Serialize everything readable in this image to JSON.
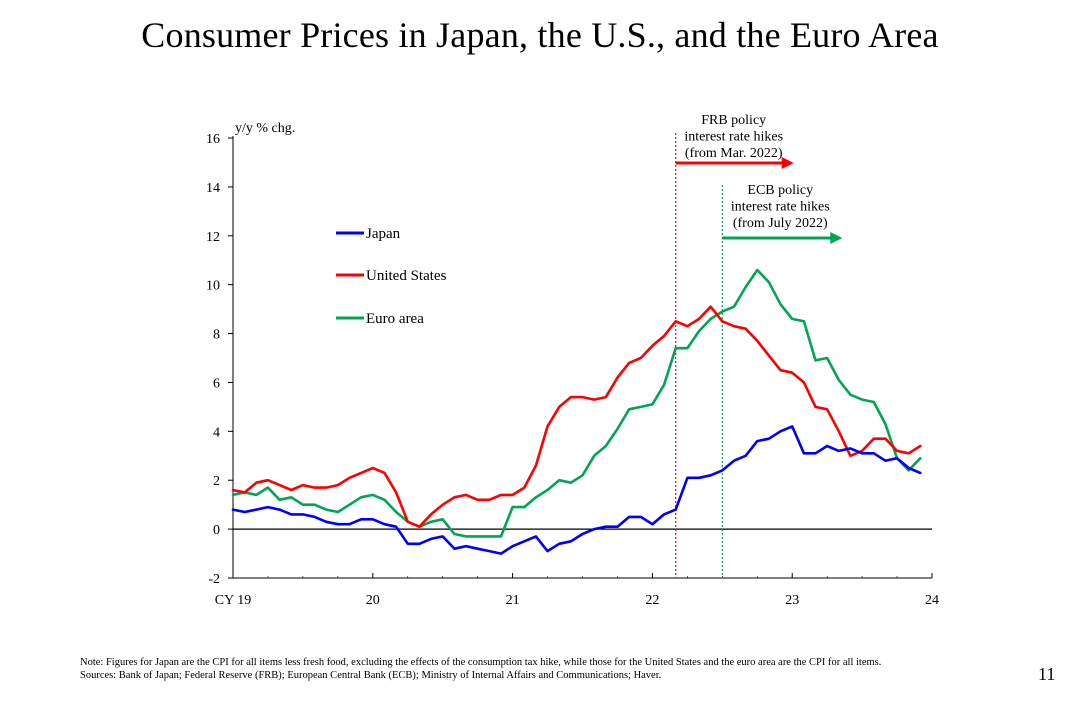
{
  "title": "Consumer Prices in Japan, the U.S., and the Euro Area",
  "page_number": "11",
  "note": "Note: Figures for Japan are the CPI for all items less fresh food, excluding the effects of the consumption tax hike, while those for the United States and the euro area are the CPI for all items.",
  "sources": "Sources: Bank of Japan; Federal Reserve (FRB); European Central Bank (ECB); Ministry of Internal Affairs and Communications; Haver.",
  "chart_data": {
    "type": "line",
    "title": "",
    "ylabel": "y/y % chg.",
    "xlabel": "",
    "ylim": [
      -2,
      16
    ],
    "yticks": [
      -2,
      0,
      2,
      4,
      6,
      8,
      10,
      12,
      14,
      16
    ],
    "xlim": [
      "2019-01",
      "2024-01"
    ],
    "xtick_labels": [
      "CY 19",
      "20",
      "21",
      "22",
      "23",
      "24"
    ],
    "xtick_dates": [
      "2019-01",
      "2020-01",
      "2021-01",
      "2022-01",
      "2023-01",
      "2024-01"
    ],
    "grid": false,
    "zero_line": true,
    "legend_position": "upper-left",
    "annotations": [
      {
        "text": [
          "FRB policy",
          "interest rate hikes",
          "(from Mar. 2022)"
        ],
        "date": "2022-03",
        "color": "#ff0000"
      },
      {
        "text": [
          "ECB policy",
          "interest rate hikes",
          "(from July 2022)"
        ],
        "date": "2022-07",
        "color": "#00a651"
      }
    ],
    "x": [
      "2019-01",
      "2019-02",
      "2019-03",
      "2019-04",
      "2019-05",
      "2019-06",
      "2019-07",
      "2019-08",
      "2019-09",
      "2019-10",
      "2019-11",
      "2019-12",
      "2020-01",
      "2020-02",
      "2020-03",
      "2020-04",
      "2020-05",
      "2020-06",
      "2020-07",
      "2020-08",
      "2020-09",
      "2020-10",
      "2020-11",
      "2020-12",
      "2021-01",
      "2021-02",
      "2021-03",
      "2021-04",
      "2021-05",
      "2021-06",
      "2021-07",
      "2021-08",
      "2021-09",
      "2021-10",
      "2021-11",
      "2021-12",
      "2022-01",
      "2022-02",
      "2022-03",
      "2022-04",
      "2022-05",
      "2022-06",
      "2022-07",
      "2022-08",
      "2022-09",
      "2022-10",
      "2022-11",
      "2022-12",
      "2023-01",
      "2023-02",
      "2023-03",
      "2023-04",
      "2023-05",
      "2023-06",
      "2023-07",
      "2023-08",
      "2023-09",
      "2023-10",
      "2023-11",
      "2023-12"
    ],
    "series": [
      {
        "name": "Japan",
        "color": "#0000ff",
        "values": [
          0.8,
          0.7,
          0.8,
          0.9,
          0.8,
          0.6,
          0.6,
          0.5,
          0.3,
          0.2,
          0.2,
          0.4,
          0.4,
          0.2,
          0.1,
          -0.6,
          -0.6,
          -0.4,
          -0.3,
          -0.8,
          -0.7,
          -0.8,
          -0.9,
          -1.0,
          -0.7,
          -0.5,
          -0.3,
          -0.9,
          -0.6,
          -0.5,
          -0.2,
          0.0,
          0.1,
          0.1,
          0.5,
          0.5,
          0.2,
          0.6,
          0.8,
          2.1,
          2.1,
          2.2,
          2.4,
          2.8,
          3.0,
          3.6,
          3.7,
          4.0,
          4.2,
          3.1,
          3.1,
          3.4,
          3.2,
          3.3,
          3.1,
          3.1,
          2.8,
          2.9,
          2.5,
          2.3
        ]
      },
      {
        "name": "United States",
        "color": "#ff0000",
        "values": [
          1.6,
          1.5,
          1.9,
          2.0,
          1.8,
          1.6,
          1.8,
          1.7,
          1.7,
          1.8,
          2.1,
          2.3,
          2.5,
          2.3,
          1.5,
          0.3,
          0.1,
          0.6,
          1.0,
          1.3,
          1.4,
          1.2,
          1.2,
          1.4,
          1.4,
          1.7,
          2.6,
          4.2,
          5.0,
          5.4,
          5.4,
          5.3,
          5.4,
          6.2,
          6.8,
          7.0,
          7.5,
          7.9,
          8.5,
          8.3,
          8.6,
          9.1,
          8.5,
          8.3,
          8.2,
          7.7,
          7.1,
          6.5,
          6.4,
          6.0,
          5.0,
          4.9,
          4.0,
          3.0,
          3.2,
          3.7,
          3.7,
          3.2,
          3.1,
          3.4
        ]
      },
      {
        "name": "Euro area",
        "color": "#00a651",
        "values": [
          1.4,
          1.5,
          1.4,
          1.7,
          1.2,
          1.3,
          1.0,
          1.0,
          0.8,
          0.7,
          1.0,
          1.3,
          1.4,
          1.2,
          0.7,
          0.3,
          0.1,
          0.3,
          0.4,
          -0.2,
          -0.3,
          -0.3,
          -0.3,
          -0.3,
          0.9,
          0.9,
          1.3,
          1.6,
          2.0,
          1.9,
          2.2,
          3.0,
          3.4,
          4.1,
          4.9,
          5.0,
          5.1,
          5.9,
          7.4,
          7.4,
          8.1,
          8.6,
          8.9,
          9.1,
          9.9,
          10.6,
          10.1,
          9.2,
          8.6,
          8.5,
          6.9,
          7.0,
          6.1,
          5.5,
          5.3,
          5.2,
          4.3,
          2.9,
          2.4,
          2.9
        ]
      }
    ]
  }
}
